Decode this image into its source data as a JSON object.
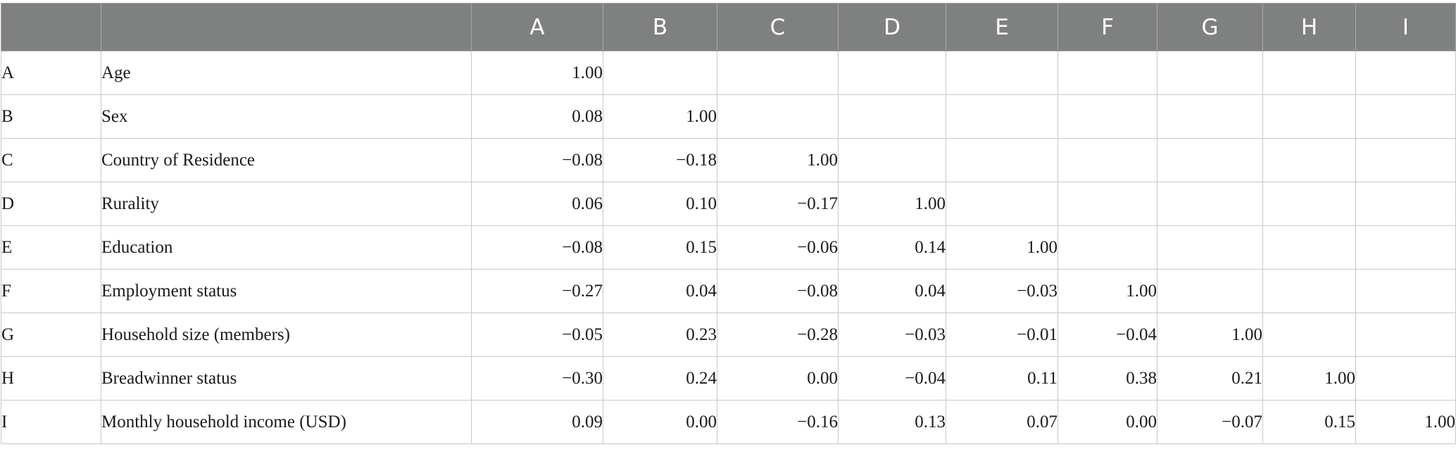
{
  "table": {
    "header": {
      "code": "",
      "label": "",
      "columns": [
        "A",
        "B",
        "C",
        "D",
        "E",
        "F",
        "G",
        "H",
        "I"
      ]
    },
    "rows": [
      {
        "code": "A",
        "label": "Age",
        "values": [
          "1.00",
          "",
          "",
          "",
          "",
          "",
          "",
          "",
          ""
        ]
      },
      {
        "code": "B",
        "label": "Sex",
        "values": [
          "0.08",
          "1.00",
          "",
          "",
          "",
          "",
          "",
          "",
          ""
        ]
      },
      {
        "code": "C",
        "label": "Country of Residence",
        "values": [
          "−0.08",
          "−0.18",
          "1.00",
          "",
          "",
          "",
          "",
          "",
          ""
        ]
      },
      {
        "code": "D",
        "label": "Rurality",
        "values": [
          "0.06",
          "0.10",
          "−0.17",
          "1.00",
          "",
          "",
          "",
          "",
          ""
        ]
      },
      {
        "code": "E",
        "label": "Education",
        "values": [
          "−0.08",
          "0.15",
          "−0.06",
          "0.14",
          "1.00",
          "",
          "",
          "",
          ""
        ]
      },
      {
        "code": "F",
        "label": "Employment status",
        "values": [
          "−0.27",
          "0.04",
          "−0.08",
          "0.04",
          "−0.03",
          "1.00",
          "",
          "",
          ""
        ]
      },
      {
        "code": "G",
        "label": "Household size (members)",
        "values": [
          "−0.05",
          "0.23",
          "−0.28",
          "−0.03",
          "−0.01",
          "−0.04",
          "1.00",
          "",
          ""
        ]
      },
      {
        "code": "H",
        "label": "Breadwinner status",
        "values": [
          "−0.30",
          "0.24",
          "0.00",
          "−0.04",
          "0.11",
          "0.38",
          "0.21",
          "1.00",
          ""
        ]
      },
      {
        "code": "I",
        "label": "Monthly household income (USD)",
        "values": [
          "0.09",
          "0.00",
          "−0.16",
          "0.13",
          "0.07",
          "0.00",
          "−0.07",
          "0.15",
          "1.00"
        ]
      }
    ]
  }
}
